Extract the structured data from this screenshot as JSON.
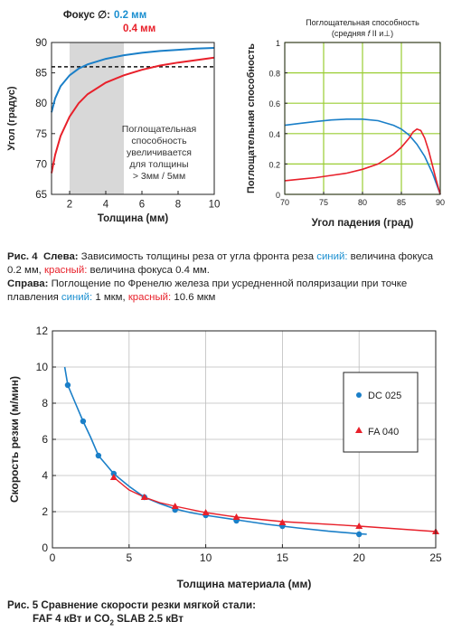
{
  "colors": {
    "blue": "#1a7fc8",
    "red": "#e8202a",
    "green": "#9acd32",
    "shade": "#d8d8d8",
    "grid": "#bdbdbd"
  },
  "chart_data": [
    {
      "type": "line",
      "legend": {
        "title": "Фокус",
        "symbol": "∅",
        "colon": ":",
        "entries": [
          "0.2 мм",
          "0.4 мм"
        ]
      },
      "xlabel": "Толщина (мм)",
      "ylabel": "Угол (градус)",
      "xlim": [
        1,
        10
      ],
      "ylim": [
        65,
        90
      ],
      "xticks": [
        "2",
        "4",
        "6",
        "8",
        "10"
      ],
      "yticks": [
        "65",
        "70",
        "75",
        "80",
        "85",
        "90"
      ],
      "reference_line": 86,
      "shaded_x": [
        2,
        5
      ],
      "annotation": [
        "Поглощательная",
        "способность",
        "увеличивается",
        "для толщины",
        "> 3мм / 5мм"
      ],
      "series": [
        {
          "name": "0.2 мм",
          "color": "blue",
          "x": [
            1,
            1.2,
            1.5,
            2,
            2.5,
            3,
            4,
            5,
            6,
            7,
            8,
            9,
            10
          ],
          "y": [
            78.5,
            80.8,
            82.8,
            84.6,
            85.7,
            86.4,
            87.3,
            87.9,
            88.3,
            88.6,
            88.8,
            89.0,
            89.1
          ]
        },
        {
          "name": "0.4 мм",
          "color": "red",
          "x": [
            1,
            1.2,
            1.5,
            2,
            2.5,
            3,
            4,
            5,
            6,
            7,
            8,
            9,
            10
          ],
          "y": [
            68.5,
            71.5,
            74.6,
            77.8,
            80.0,
            81.5,
            83.4,
            84.6,
            85.5,
            86.2,
            86.7,
            87.1,
            87.5
          ]
        }
      ]
    },
    {
      "type": "line",
      "title": [
        "Поглощательная способность",
        "(средняя",
        "f",
        "II и",
        "⊥",
        ")"
      ],
      "xlabel": "Угол падения (град)",
      "ylabel": "Поглощательная способность",
      "xlim": [
        70,
        90
      ],
      "ylim": [
        0,
        1
      ],
      "xticks": [
        "70",
        "75",
        "80",
        "85",
        "90"
      ],
      "yticks": [
        "0",
        "0.2",
        "0.4",
        "0.6",
        "0.8",
        "1"
      ],
      "series": [
        {
          "name": "1 мкм",
          "color": "blue",
          "x": [
            70,
            72,
            74,
            76,
            78,
            80,
            82,
            84,
            85,
            86,
            87,
            88,
            89,
            89.5,
            90
          ],
          "y": [
            0.455,
            0.468,
            0.48,
            0.49,
            0.495,
            0.495,
            0.485,
            0.455,
            0.43,
            0.39,
            0.33,
            0.25,
            0.14,
            0.07,
            0
          ]
        },
        {
          "name": "10.6 мкм",
          "color": "red",
          "x": [
            70,
            72,
            74,
            76,
            78,
            80,
            82,
            84,
            85,
            86,
            86.5,
            87,
            87.5,
            88,
            88.5,
            89,
            89.5,
            90
          ],
          "y": [
            0.09,
            0.1,
            0.11,
            0.125,
            0.14,
            0.165,
            0.2,
            0.265,
            0.31,
            0.37,
            0.41,
            0.43,
            0.42,
            0.37,
            0.29,
            0.19,
            0.09,
            0
          ]
        }
      ]
    },
    {
      "type": "scatter",
      "xlabel": "Толщина материала (мм)",
      "ylabel": "Скорость резки (м/мин)",
      "xlim": [
        0,
        25
      ],
      "ylim": [
        0,
        12
      ],
      "xticks": [
        "0",
        "5",
        "10",
        "15",
        "20",
        "25"
      ],
      "yticks": [
        "0",
        "2",
        "4",
        "6",
        "8",
        "10",
        "12"
      ],
      "legend_position": "right",
      "series": [
        {
          "name": "DC 025",
          "color": "blue",
          "marker": "circle",
          "points_x": [
            1,
            2,
            3,
            4,
            6,
            8,
            10,
            12,
            15,
            20
          ],
          "points_y": [
            9.0,
            7.0,
            5.1,
            4.1,
            2.8,
            2.1,
            1.8,
            1.5,
            1.2,
            0.75
          ],
          "curve_x": [
            0.8,
            1,
            1.5,
            2,
            2.5,
            3,
            3.5,
            4,
            5,
            6,
            7,
            8,
            9,
            10,
            12,
            14,
            16,
            18,
            20,
            20.5
          ],
          "curve_y": [
            10.0,
            9.0,
            8.0,
            7.0,
            6.1,
            5.1,
            4.6,
            4.1,
            3.4,
            2.8,
            2.45,
            2.15,
            1.95,
            1.8,
            1.55,
            1.3,
            1.1,
            0.92,
            0.78,
            0.75
          ]
        },
        {
          "name": "FA 040",
          "color": "red",
          "marker": "triangle",
          "points_x": [
            4,
            6,
            8,
            10,
            12,
            15,
            20,
            25
          ],
          "points_y": [
            3.9,
            2.8,
            2.3,
            1.95,
            1.7,
            1.4,
            1.2,
            0.9
          ],
          "curve_x": [
            4,
            5,
            6,
            7,
            8,
            10,
            12,
            15,
            20,
            25
          ],
          "curve_y": [
            3.9,
            3.2,
            2.8,
            2.5,
            2.3,
            1.95,
            1.7,
            1.45,
            1.2,
            0.9
          ]
        }
      ]
    }
  ],
  "caption1": {
    "fig": "Рис. 4",
    "left_label": "Слева:",
    "left_text": "Зависимость толщины реза от угла фронта реза",
    "blue_word": "синий:",
    "blue_text": "величина фокуса 0.2 мм,",
    "red_word": "красный:",
    "red_text": "величина фокуса 0.4 мм.",
    "right_label": "Справа:",
    "right_text": "Поглощение по Френелю железа при усредненной поляризации при точке плавления",
    "blue_word2": "синий:",
    "blue_text2": "1 мкм,",
    "red_word2": "красный:",
    "red_text2": "10.6 мкм"
  },
  "caption2": {
    "line1": "Рис. 5  Сравнение скорости резки мягкой стали:",
    "line2_a": "FAF 4 кВт и CO",
    "line2_sub": "2",
    "line2_b": " SLAB 2.5 кВт"
  }
}
